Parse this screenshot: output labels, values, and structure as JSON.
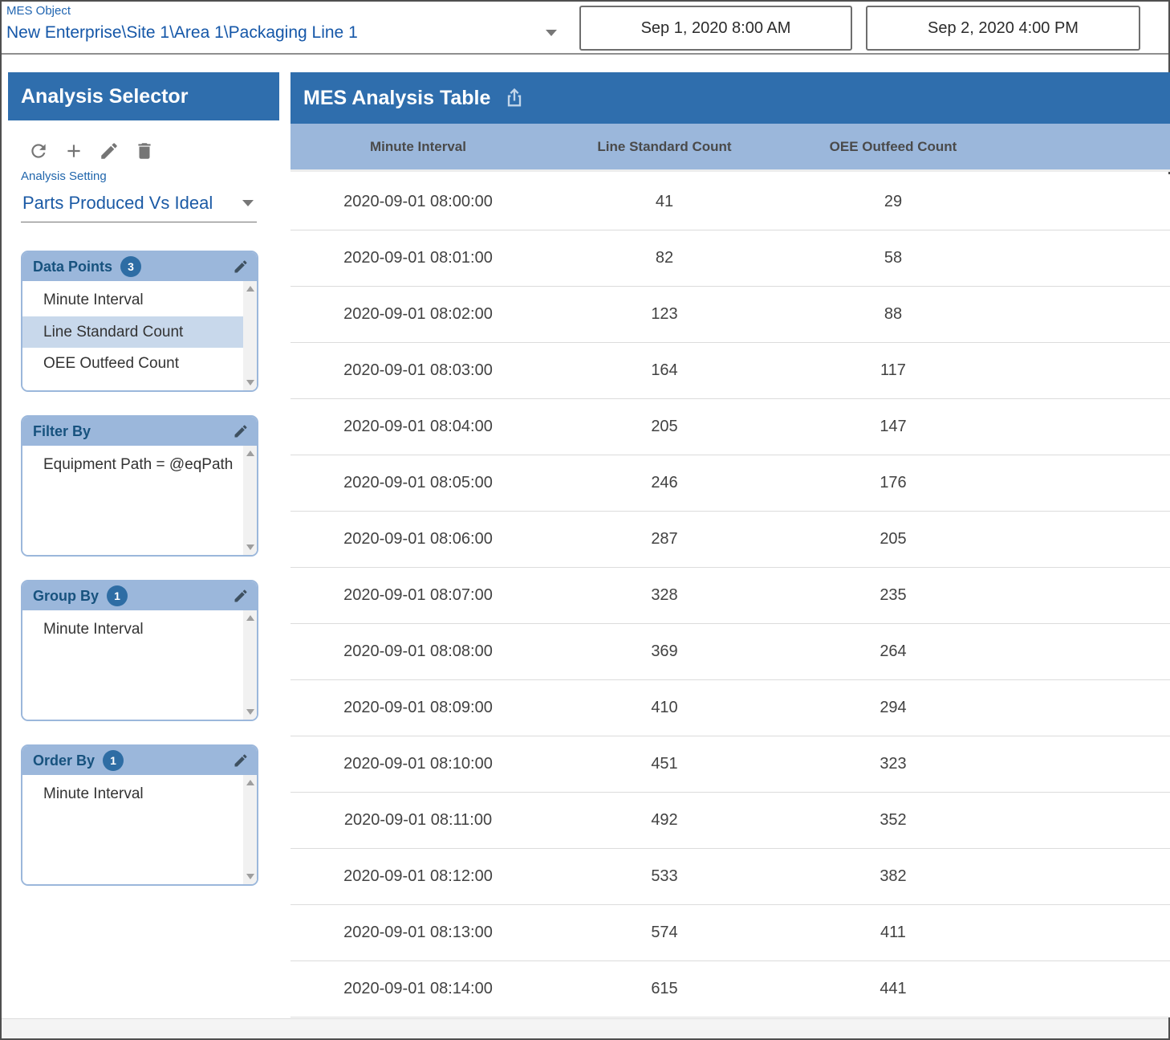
{
  "topbar": {
    "mes_object_label": "MES Object",
    "mes_object_value": "New Enterprise\\Site 1\\Area 1\\Packaging Line 1",
    "start_date": "Sep 1, 2020 8:00 AM",
    "end_date": "Sep 2, 2020 4:00 PM"
  },
  "sidebar": {
    "title": "Analysis Selector",
    "toolbar_icons": [
      "refresh-icon",
      "add-icon",
      "edit-icon",
      "delete-icon"
    ],
    "analysis_setting_label": "Analysis Setting",
    "analysis_setting_value": "Parts Produced Vs Ideal",
    "panels": [
      {
        "title": "Data Points",
        "badge": "3",
        "items": [
          {
            "label": "Minute Interval",
            "selected": false
          },
          {
            "label": "Line Standard Count",
            "selected": true
          },
          {
            "label": "OEE Outfeed Count",
            "selected": false
          }
        ]
      },
      {
        "title": "Filter By",
        "badge": null,
        "items": [
          {
            "label": "Equipment Path = @eqPath",
            "selected": false
          }
        ]
      },
      {
        "title": "Group By",
        "badge": "1",
        "items": [
          {
            "label": "Minute Interval",
            "selected": false
          }
        ]
      },
      {
        "title": "Order By",
        "badge": "1",
        "items": [
          {
            "label": "Minute Interval",
            "selected": false
          }
        ]
      }
    ]
  },
  "main": {
    "title": "MES Analysis Table",
    "export_icon": "export-icon",
    "table": {
      "columns": [
        "Minute Interval",
        "Line Standard Count",
        "OEE Outfeed Count"
      ],
      "rows": [
        [
          "2020-09-01 08:00:00",
          "41",
          "29"
        ],
        [
          "2020-09-01 08:01:00",
          "82",
          "58"
        ],
        [
          "2020-09-01 08:02:00",
          "123",
          "88"
        ],
        [
          "2020-09-01 08:03:00",
          "164",
          "117"
        ],
        [
          "2020-09-01 08:04:00",
          "205",
          "147"
        ],
        [
          "2020-09-01 08:05:00",
          "246",
          "176"
        ],
        [
          "2020-09-01 08:06:00",
          "287",
          "205"
        ],
        [
          "2020-09-01 08:07:00",
          "328",
          "235"
        ],
        [
          "2020-09-01 08:08:00",
          "369",
          "264"
        ],
        [
          "2020-09-01 08:09:00",
          "410",
          "294"
        ],
        [
          "2020-09-01 08:10:00",
          "451",
          "323"
        ],
        [
          "2020-09-01 08:11:00",
          "492",
          "352"
        ],
        [
          "2020-09-01 08:12:00",
          "533",
          "382"
        ],
        [
          "2020-09-01 08:13:00",
          "574",
          "411"
        ],
        [
          "2020-09-01 08:14:00",
          "615",
          "441"
        ]
      ]
    }
  },
  "colors": {
    "header_blue": "#2f6ead",
    "panel_header_blue": "#9bb7db",
    "selected_item_blue": "#c8d8eb",
    "badge_blue": "#2e6da4",
    "link_blue": "#1557a8",
    "row_text": "#424242"
  }
}
